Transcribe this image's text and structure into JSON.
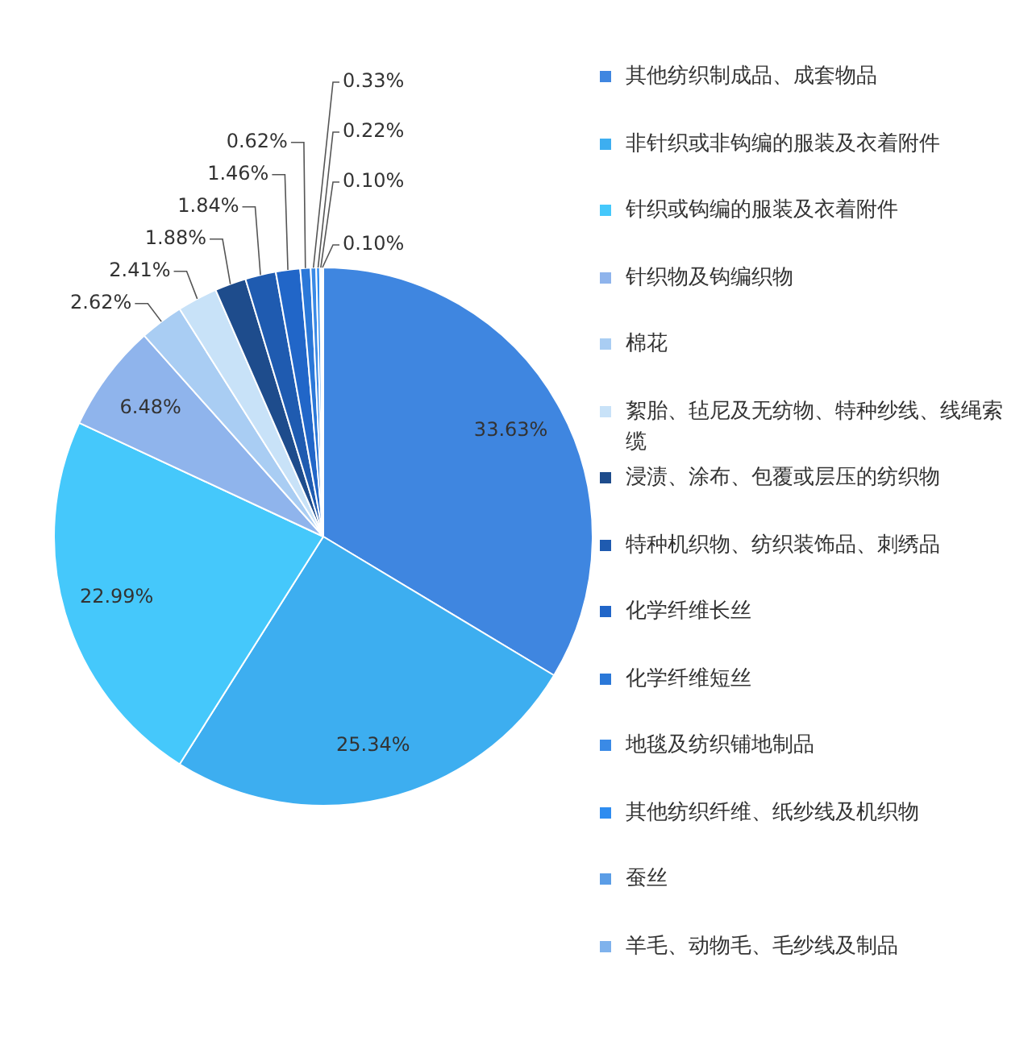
{
  "chart_data": {
    "type": "pie",
    "categories": [
      "其他纺织制成品、成套物品",
      "非针织或非钩编的服装及衣着附件",
      "针织或钩编的服装及衣着附件",
      "针织物及钩编织物",
      "棉花",
      "絮胎、毡尼及无纺物、特种纱线、线绳索缆",
      "浸渍、涂布、包覆或层压的纺织物",
      "特种机织物、纺织装饰品、刺绣品",
      "化学纤维长丝",
      "化学纤维短丝",
      "地毯及纺织铺地制品",
      "其他纺织纤维、纸纱线及机织物",
      "蚕丝",
      "羊毛、动物毛、毛纱线及制品"
    ],
    "values": [
      33.63,
      25.34,
      22.99,
      6.48,
      2.62,
      2.41,
      1.88,
      1.84,
      1.46,
      0.62,
      0.33,
      0.22,
      0.1,
      0.1
    ],
    "value_labels": [
      "33.63%",
      "25.34%",
      "22.99%",
      "6.48%",
      "2.62%",
      "2.41%",
      "1.88%",
      "1.84%",
      "1.46%",
      "0.62%",
      "0.33%",
      "0.22%",
      "0.10%",
      "0.10%"
    ],
    "colors": [
      "#3f86e0",
      "#3daef0",
      "#45c8fb",
      "#8fb4ec",
      "#a9cdf3",
      "#c8e2f8",
      "#1e4c8c",
      "#1f5bb0",
      "#2166c8",
      "#2b78d8",
      "#3a8ae6",
      "#2e8cf0",
      "#5b9de6",
      "#7fb2ec"
    ],
    "legend": "right"
  }
}
